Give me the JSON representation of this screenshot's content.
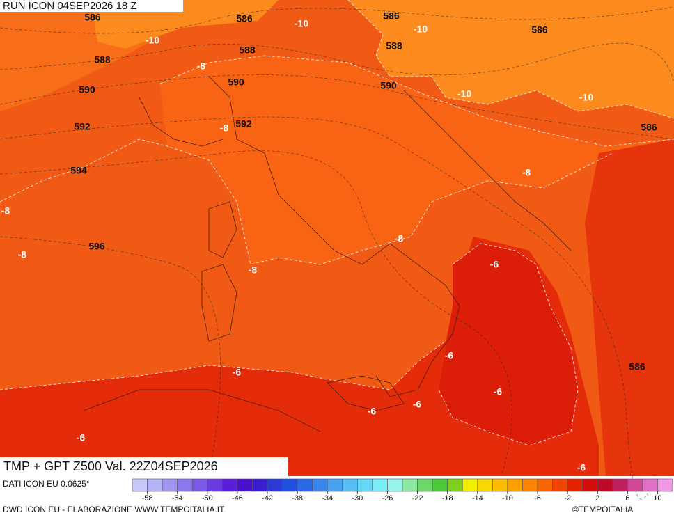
{
  "header": {
    "run": "RUN ICON 04SEP2026 18 Z"
  },
  "map": {
    "product": "TMP + GPT Z500 Val. 22Z04SEP2026",
    "geopotential_labels": [
      586,
      586,
      586,
      586,
      588,
      588,
      588,
      590,
      590,
      590,
      592,
      592,
      594,
      596,
      586,
      586
    ],
    "temperature_labels": [
      -10,
      -10,
      -10,
      -10,
      -10,
      -8,
      -8,
      -8,
      -8,
      -8,
      -8,
      -8,
      -6,
      -6,
      -6,
      -6,
      -6,
      -6,
      -6,
      -6
    ]
  },
  "colorbar": {
    "colors": [
      "#c8c8f8",
      "#b4b4f4",
      "#a096f0",
      "#8c78ec",
      "#7a5ae6",
      "#6a3ce0",
      "#5a1ed8",
      "#4a10cc",
      "#3c1cd0",
      "#2c3ad8",
      "#2050e0",
      "#2a6ae6",
      "#3a86ec",
      "#48a2f0",
      "#56bef4",
      "#64d8f6",
      "#7cecf8",
      "#96f4ec",
      "#8ce8a0",
      "#6cd86a",
      "#4cc83a",
      "#7cd020",
      "#f0f000",
      "#f8d800",
      "#fcbc00",
      "#fca000",
      "#fc8400",
      "#f86400",
      "#f04400",
      "#e42400",
      "#d40c0c",
      "#c00828",
      "#c02060",
      "#d0489a",
      "#e070c8",
      "#f098e4"
    ],
    "ticks": [
      -58,
      -54,
      -50,
      -46,
      -42,
      -38,
      -34,
      -30,
      -26,
      -22,
      -18,
      -14,
      -10,
      -6,
      -2,
      2,
      6,
      10
    ]
  },
  "footer": {
    "source": "DATI ICON EU 0.0625°",
    "credit": "DWD ICON EU - ELABORAZIONE WWW.TEMPOITALIA.IT",
    "copyright": "©TEMPOITALIA"
  }
}
